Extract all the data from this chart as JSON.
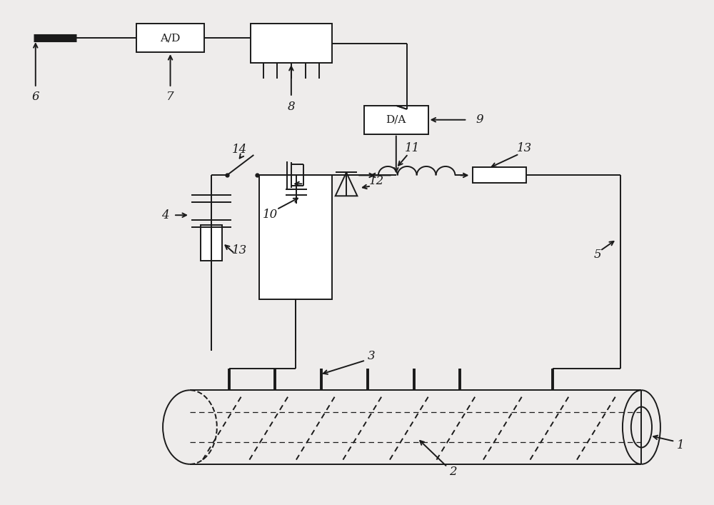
{
  "bg_color": "#eeeceb",
  "line_color": "#1a1a1a",
  "fig_width": 10.0,
  "fig_height": 7.07,
  "dpi": 100,
  "lw": 1.4
}
